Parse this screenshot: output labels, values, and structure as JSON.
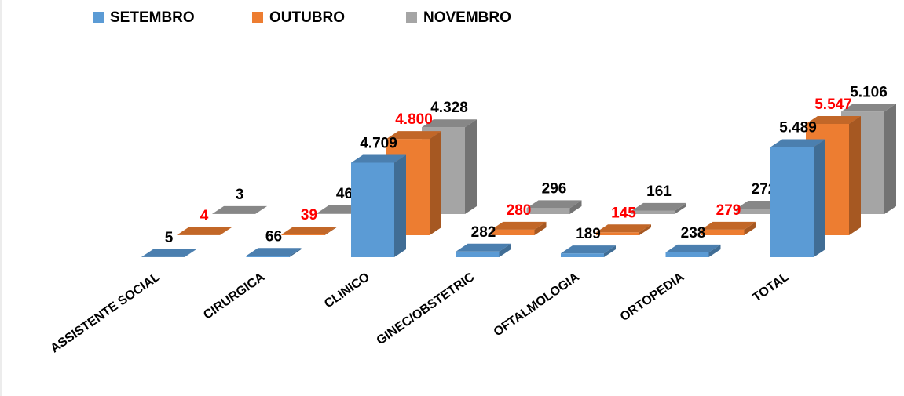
{
  "chart_data": {
    "type": "bar3d",
    "categories": [
      "ASSISTENTE SOCIAL",
      "CIRURGICA",
      "CLINICO",
      "GINEC/OBSTETRIC",
      "OFTALMOLOGIA",
      "ORTOPEDIA",
      "TOTAL"
    ],
    "series": [
      {
        "name": "SETEMBRO",
        "color": "#5b9bd5",
        "label_color": "#000000",
        "values": [
          5,
          66,
          4709,
          282,
          189,
          238,
          5489
        ],
        "value_labels": [
          "5",
          "66",
          "4.709",
          "282",
          "189",
          "238",
          "5.489"
        ]
      },
      {
        "name": "OUTUBRO",
        "color": "#ed7d31",
        "label_color": "#ff0000",
        "values": [
          4,
          39,
          4800,
          280,
          145,
          279,
          5547
        ],
        "value_labels": [
          "4",
          "39",
          "4.800",
          "280",
          "145",
          "279",
          "5.547"
        ]
      },
      {
        "name": "NOVEMBRO",
        "color": "#a5a5a5",
        "label_color": "#000000",
        "values": [
          3,
          46,
          4328,
          296,
          161,
          272,
          5106
        ],
        "value_labels": [
          "3",
          "46",
          "4.328",
          "296",
          "161",
          "272",
          "5.106"
        ]
      }
    ],
    "legend": "top"
  }
}
